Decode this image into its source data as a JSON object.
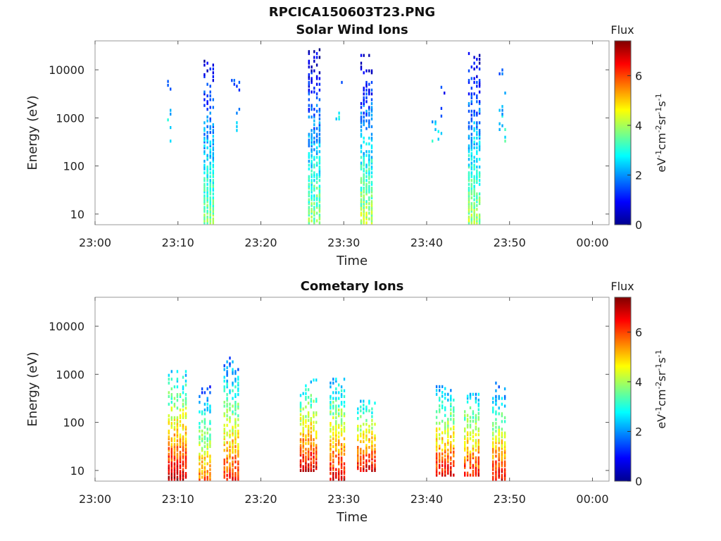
{
  "figure_title": "RPCICA150603T23.PNG",
  "chart_data": [
    {
      "type": "heatmap",
      "title": "Solar Wind Ions",
      "xlabel": "Time",
      "ylabel": "Energy (eV)",
      "yscale": "log",
      "xlim": [
        "23:00",
        "00:02"
      ],
      "ylim": [
        6,
        40000
      ],
      "xticks": [
        "23:00",
        "23:10",
        "23:20",
        "23:30",
        "23:40",
        "23:50",
        "00:00"
      ],
      "yticks": [
        "10",
        "100",
        "1000",
        "10000"
      ],
      "colorbar": {
        "label_top": "Flux",
        "unit": "eV-1cm-2sr-1s-1",
        "ticks": [
          "0",
          "2",
          "4",
          "6"
        ],
        "range": [
          0,
          7.4
        ]
      },
      "bursts": [
        {
          "time": "23:09",
          "width_min": 0.6,
          "emin": 250,
          "emax": 15000,
          "vmin": 1.2,
          "vmax": 3.2,
          "density": 0.1,
          "seed": 3
        },
        {
          "time": "23:13.8",
          "width_min": 1.4,
          "emin": 6,
          "emax": 16000,
          "vmin": 0.6,
          "vmax": 3.8,
          "density": 0.55,
          "seed": 11
        },
        {
          "time": "23:17",
          "width_min": 1.2,
          "emin": 500,
          "emax": 8000,
          "vmin": 1.4,
          "vmax": 3.0,
          "density": 0.12,
          "seed": 21
        },
        {
          "time": "23:26.5",
          "width_min": 1.6,
          "emin": 6,
          "emax": 28000,
          "vmin": 0.4,
          "vmax": 3.8,
          "density": 0.5,
          "seed": 31
        },
        {
          "time": "23:29.5",
          "width_min": 1.0,
          "emin": 600,
          "emax": 9000,
          "vmin": 1.4,
          "vmax": 3.0,
          "density": 0.1,
          "seed": 41
        },
        {
          "time": "23:32.8",
          "width_min": 1.6,
          "emin": 6,
          "emax": 22000,
          "vmin": 0.4,
          "vmax": 4.2,
          "density": 0.5,
          "seed": 51
        },
        {
          "time": "23:41.5",
          "width_min": 1.8,
          "emin": 300,
          "emax": 7000,
          "vmin": 0.8,
          "vmax": 2.8,
          "density": 0.1,
          "seed": 61
        },
        {
          "time": "23:45.8",
          "width_min": 1.6,
          "emin": 6,
          "emax": 25000,
          "vmin": 0.6,
          "vmax": 4.0,
          "density": 0.5,
          "seed": 71
        },
        {
          "time": "23:49.2",
          "width_min": 1.0,
          "emin": 300,
          "emax": 15000,
          "vmin": 1.2,
          "vmax": 3.0,
          "density": 0.1,
          "seed": 81
        }
      ]
    },
    {
      "type": "heatmap",
      "title": "Cometary Ions",
      "xlabel": "Time",
      "ylabel": "Energy (eV)",
      "yscale": "log",
      "xlim": [
        "23:00",
        "00:02"
      ],
      "ylim": [
        6,
        40000
      ],
      "xticks": [
        "23:00",
        "23:10",
        "23:20",
        "23:30",
        "23:40",
        "23:50",
        "00:00"
      ],
      "yticks": [
        "10",
        "100",
        "1000",
        "10000"
      ],
      "colorbar": {
        "label_top": "Flux",
        "unit": "eV-1cm-2sr-1s-1",
        "ticks": [
          "0",
          "2",
          "4",
          "6"
        ],
        "range": [
          0,
          7.4
        ]
      },
      "bursts": [
        {
          "time": "23:10",
          "width_min": 2.4,
          "emin": 6,
          "emax": 1300,
          "vmin": 2.4,
          "vmax": 7.0,
          "density": 0.55,
          "seed": 101
        },
        {
          "time": "23:13.3",
          "width_min": 1.6,
          "emin": 6,
          "emax": 600,
          "vmin": 1.4,
          "vmax": 5.8,
          "density": 0.5,
          "seed": 111
        },
        {
          "time": "23:16.5",
          "width_min": 2.0,
          "emin": 6,
          "emax": 2500,
          "vmin": 1.6,
          "vmax": 6.4,
          "density": 0.5,
          "seed": 121
        },
        {
          "time": "23:25.8",
          "width_min": 2.2,
          "emin": 10,
          "emax": 800,
          "vmin": 2.4,
          "vmax": 6.8,
          "density": 0.55,
          "seed": 131
        },
        {
          "time": "23:29.3",
          "width_min": 2.0,
          "emin": 6,
          "emax": 900,
          "vmin": 2.2,
          "vmax": 6.8,
          "density": 0.55,
          "seed": 141
        },
        {
          "time": "23:32.8",
          "width_min": 2.4,
          "emin": 10,
          "emax": 300,
          "vmin": 2.4,
          "vmax": 6.8,
          "density": 0.55,
          "seed": 151
        },
        {
          "time": "23:42.3",
          "width_min": 2.4,
          "emin": 8,
          "emax": 600,
          "vmin": 2.2,
          "vmax": 6.6,
          "density": 0.5,
          "seed": 161
        },
        {
          "time": "23:45.5",
          "width_min": 2.0,
          "emin": 8,
          "emax": 500,
          "vmin": 2.2,
          "vmax": 6.4,
          "density": 0.5,
          "seed": 171
        },
        {
          "time": "23:48.8",
          "width_min": 1.8,
          "emin": 6,
          "emax": 800,
          "vmin": 1.4,
          "vmax": 6.8,
          "density": 0.5,
          "seed": 181
        }
      ]
    }
  ]
}
